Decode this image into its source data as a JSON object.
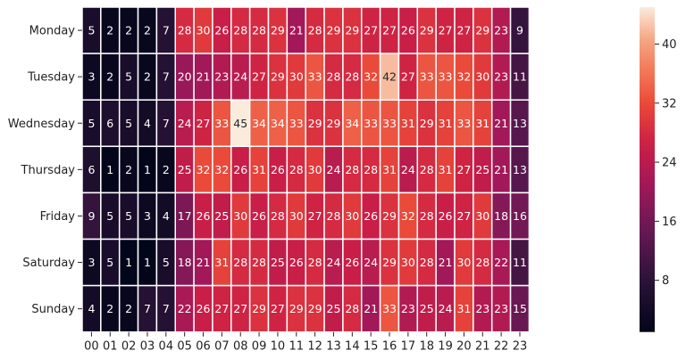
{
  "chart_data": {
    "type": "heatmap",
    "title": "",
    "xlabel": "",
    "ylabel": "",
    "x_categories": [
      "00",
      "01",
      "02",
      "03",
      "04",
      "05",
      "06",
      "07",
      "08",
      "09",
      "10",
      "11",
      "12",
      "13",
      "14",
      "15",
      "16",
      "17",
      "18",
      "19",
      "20",
      "21",
      "22",
      "23"
    ],
    "y_categories": [
      "Monday",
      "Tuesday",
      "Wednesday",
      "Thursday",
      "Friday",
      "Saturday",
      "Sunday"
    ],
    "values": [
      [
        5,
        2,
        2,
        2,
        7,
        28,
        30,
        26,
        28,
        28,
        29,
        21,
        28,
        29,
        29,
        27,
        27,
        26,
        29,
        27,
        27,
        29,
        23,
        9
      ],
      [
        3,
        2,
        5,
        2,
        7,
        20,
        21,
        23,
        24,
        27,
        29,
        30,
        33,
        28,
        28,
        32,
        42,
        27,
        33,
        33,
        32,
        30,
        23,
        11
      ],
      [
        5,
        6,
        5,
        4,
        7,
        24,
        27,
        33,
        45,
        34,
        34,
        33,
        29,
        29,
        34,
        33,
        33,
        31,
        29,
        31,
        33,
        31,
        21,
        13
      ],
      [
        6,
        1,
        2,
        1,
        2,
        25,
        32,
        32,
        26,
        31,
        26,
        28,
        30,
        24,
        28,
        28,
        31,
        24,
        28,
        31,
        27,
        25,
        21,
        13
      ],
      [
        9,
        5,
        5,
        3,
        4,
        17,
        26,
        25,
        30,
        26,
        28,
        30,
        27,
        28,
        30,
        26,
        29,
        32,
        28,
        26,
        27,
        30,
        18,
        16
      ],
      [
        3,
        5,
        1,
        1,
        5,
        18,
        21,
        31,
        28,
        28,
        25,
        26,
        28,
        24,
        26,
        24,
        29,
        30,
        28,
        21,
        30,
        28,
        22,
        11
      ],
      [
        4,
        2,
        2,
        7,
        7,
        22,
        26,
        27,
        27,
        29,
        27,
        29,
        29,
        25,
        28,
        21,
        33,
        23,
        25,
        24,
        31,
        23,
        23,
        15
      ]
    ],
    "colorbar": {
      "colormap": "rocket",
      "range": [
        1,
        45
      ],
      "ticks": [
        8,
        16,
        24,
        32,
        40
      ]
    },
    "annotations": "cell values shown",
    "grid": false
  }
}
